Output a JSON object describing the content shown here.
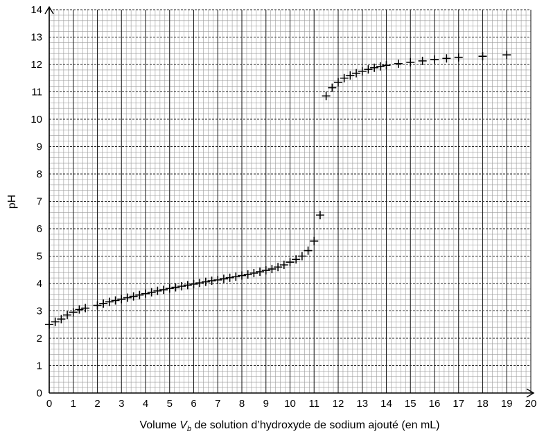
{
  "chart_data": {
    "type": "scatter",
    "title": "",
    "xlabel_prefix": "Volume ",
    "xlabel_var": "V",
    "xlabel_sub": "b",
    "xlabel_suffix": " de solution d’hydroxyde de sodium ajouté (en mL)",
    "ylabel": "pH",
    "xlim": [
      0,
      20
    ],
    "ylim": [
      0,
      14
    ],
    "xticks": [
      0,
      1,
      2,
      3,
      4,
      5,
      6,
      7,
      8,
      9,
      10,
      11,
      12,
      13,
      14,
      15,
      16,
      17,
      18,
      19,
      20
    ],
    "yticks": [
      0,
      1,
      2,
      3,
      4,
      5,
      6,
      7,
      8,
      9,
      10,
      11,
      12,
      13,
      14
    ],
    "grid": true,
    "minor_grid_per_unit": 5,
    "marker": "plus",
    "points": [
      {
        "x": 0.0,
        "y": 2.5
      },
      {
        "x": 0.25,
        "y": 2.6
      },
      {
        "x": 0.5,
        "y": 2.7
      },
      {
        "x": 0.75,
        "y": 2.85
      },
      {
        "x": 1.0,
        "y": 2.95
      },
      {
        "x": 1.25,
        "y": 3.05
      },
      {
        "x": 1.5,
        "y": 3.1
      },
      {
        "x": 2.0,
        "y": 3.2
      },
      {
        "x": 2.25,
        "y": 3.27
      },
      {
        "x": 2.5,
        "y": 3.33
      },
      {
        "x": 2.75,
        "y": 3.38
      },
      {
        "x": 3.0,
        "y": 3.43
      },
      {
        "x": 3.25,
        "y": 3.48
      },
      {
        "x": 3.5,
        "y": 3.53
      },
      {
        "x": 3.75,
        "y": 3.58
      },
      {
        "x": 4.0,
        "y": 3.63
      },
      {
        "x": 4.25,
        "y": 3.68
      },
      {
        "x": 4.5,
        "y": 3.73
      },
      {
        "x": 4.75,
        "y": 3.77
      },
      {
        "x": 5.0,
        "y": 3.82
      },
      {
        "x": 5.25,
        "y": 3.86
      },
      {
        "x": 5.5,
        "y": 3.9
      },
      {
        "x": 5.75,
        "y": 3.94
      },
      {
        "x": 6.0,
        "y": 3.98
      },
      {
        "x": 6.25,
        "y": 4.02
      },
      {
        "x": 6.5,
        "y": 4.06
      },
      {
        "x": 6.75,
        "y": 4.1
      },
      {
        "x": 7.0,
        "y": 4.13
      },
      {
        "x": 7.25,
        "y": 4.17
      },
      {
        "x": 7.5,
        "y": 4.21
      },
      {
        "x": 7.75,
        "y": 4.25
      },
      {
        "x": 8.0,
        "y": 4.29
      },
      {
        "x": 8.25,
        "y": 4.33
      },
      {
        "x": 8.5,
        "y": 4.38
      },
      {
        "x": 8.75,
        "y": 4.43
      },
      {
        "x": 9.0,
        "y": 4.48
      },
      {
        "x": 9.25,
        "y": 4.53
      },
      {
        "x": 9.5,
        "y": 4.6
      },
      {
        "x": 9.75,
        "y": 4.68
      },
      {
        "x": 10.0,
        "y": 4.78
      },
      {
        "x": 10.25,
        "y": 4.88
      },
      {
        "x": 10.5,
        "y": 5.0
      },
      {
        "x": 10.75,
        "y": 5.2
      },
      {
        "x": 11.0,
        "y": 5.55
      },
      {
        "x": 11.25,
        "y": 6.5
      },
      {
        "x": 11.5,
        "y": 10.85
      },
      {
        "x": 11.75,
        "y": 11.15
      },
      {
        "x": 12.0,
        "y": 11.35
      },
      {
        "x": 12.25,
        "y": 11.5
      },
      {
        "x": 12.5,
        "y": 11.6
      },
      {
        "x": 12.75,
        "y": 11.68
      },
      {
        "x": 13.0,
        "y": 11.75
      },
      {
        "x": 13.25,
        "y": 11.82
      },
      {
        "x": 13.5,
        "y": 11.88
      },
      {
        "x": 13.75,
        "y": 11.93
      },
      {
        "x": 14.0,
        "y": 11.97
      },
      {
        "x": 14.5,
        "y": 12.03
      },
      {
        "x": 15.0,
        "y": 12.08
      },
      {
        "x": 15.5,
        "y": 12.13
      },
      {
        "x": 16.0,
        "y": 12.18
      },
      {
        "x": 16.5,
        "y": 12.22
      },
      {
        "x": 17.0,
        "y": 12.26
      },
      {
        "x": 18.0,
        "y": 12.3
      },
      {
        "x": 19.0,
        "y": 12.35
      }
    ]
  }
}
